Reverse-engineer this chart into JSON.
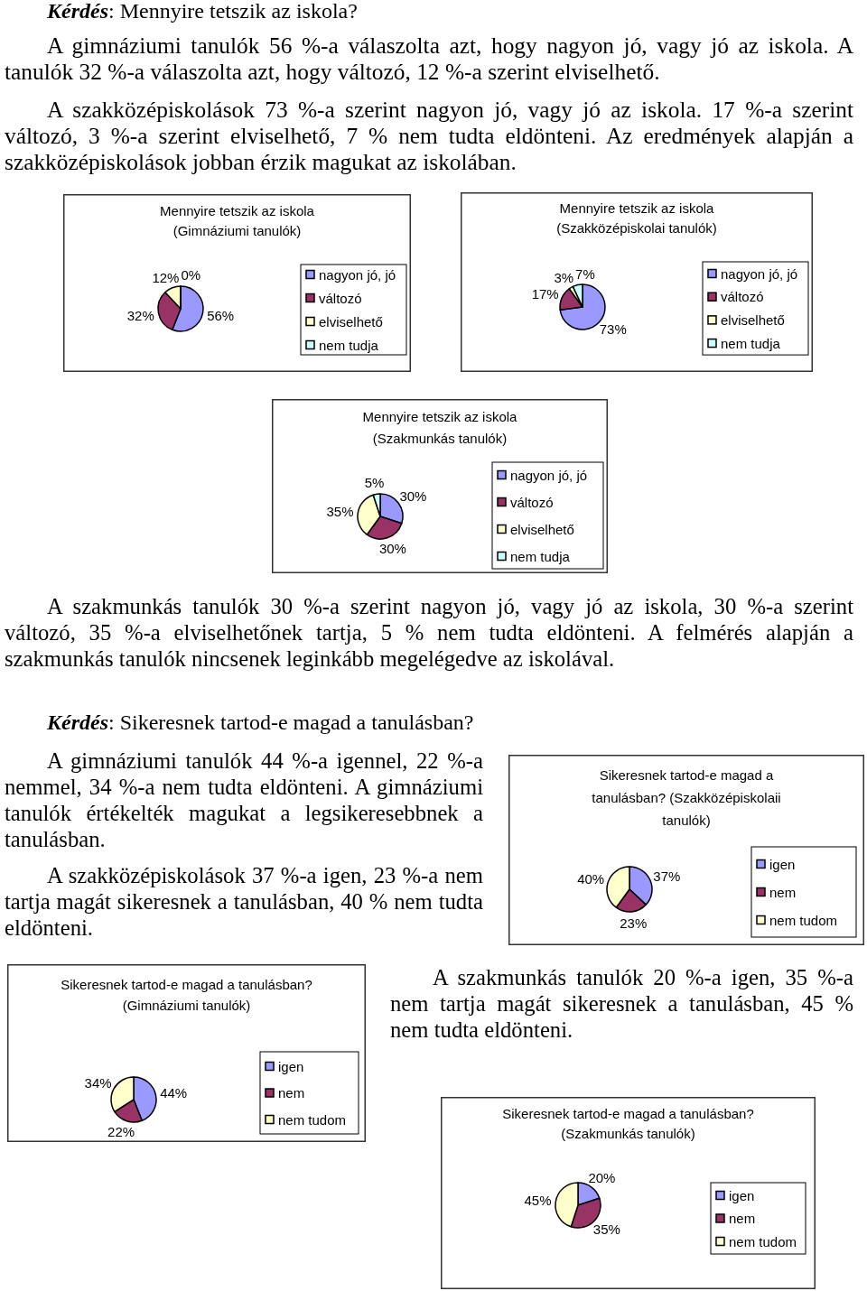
{
  "chart_data": [
    {
      "type": "other",
      "title": "Kérdés: Mennyire tetszik az iskola?",
      "annotations": [
        "A gimnáziumi tanulók 56 %-a válaszolta azt, hogy nagyon jó, vagy jó az iskola. A tanulók 32 %-a válaszolta azt, hogy változó, 12 %-a szerint elviselhető.",
        "A szakközépiskolások 73 %-a szerint nagyon jó, vagy jó az iskola. 17 %-a szerint változó, 3 %-a szerint elviselhető, 7 % nem tudta eldönteni. Az eredmények alapján a szakközépiskolások jobban érzik magukat az iskolában."
      ]
    },
    {
      "type": "pie",
      "title": "Mennyire tetszik az iskola",
      "subtitle": "(Gimnáziumi tanulók)",
      "categories": [
        "nagyon jó, jó",
        "változó",
        "elviselhető",
        "nem tudja"
      ],
      "values": [
        56,
        32,
        12,
        0
      ],
      "colors": [
        "#9999ff",
        "#993366",
        "#ffffcc",
        "#ccffff"
      ],
      "value_labels": [
        "56%",
        "32%",
        "12%",
        "0%"
      ],
      "legend": "right"
    },
    {
      "type": "pie",
      "title": "Mennyire tetszik az iskola",
      "subtitle": "(Szakközépiskolai tanulók)",
      "categories": [
        "nagyon jó, jó",
        "változó",
        "elviselhető",
        "nem tudja"
      ],
      "values": [
        73,
        17,
        3,
        7
      ],
      "colors": [
        "#9999ff",
        "#993366",
        "#ffffcc",
        "#ccffff"
      ],
      "value_labels": [
        "73%",
        "17%",
        "3%",
        "7%"
      ],
      "legend": "right"
    },
    {
      "type": "pie",
      "title": "Mennyire tetszik az iskola",
      "subtitle": "(Szakmunkás tanulók)",
      "categories": [
        "nagyon jó, jó",
        "változó",
        "elviselhető",
        "nem tudja"
      ],
      "values": [
        30,
        30,
        35,
        5
      ],
      "colors": [
        "#9999ff",
        "#993366",
        "#ffffcc",
        "#ccffff"
      ],
      "value_labels": [
        "30%",
        "30%",
        "35%",
        "5%"
      ],
      "legend": "right"
    },
    {
      "type": "other",
      "annotations": [
        "A szakmunkás tanulók 30 %-a szerint nagyon jó, vagy jó az iskola, 30 %-a szerint változó, 35 %-a elviselhetőnek tartja, 5 % nem tudta eldönteni. A felmérés alapján a szakmunkás tanulók nincsenek leginkább megelégedve az iskolával."
      ]
    },
    {
      "type": "other",
      "title": "Kérdés: Sikeresnek tartod-e magad a tanulásban?",
      "annotations": [
        "A gimnáziumi tanulók 44 %-a igennel, 22 %-a nemmel, 34 %-a nem tudta eldönteni. A gimnáziumi tanulók értékelték magukat a legsikeresebbnek a tanulásban.",
        "A szakközépiskolások 37 %-a igen, 23 %-a nem tartja magát sikeresnek a tanulásban, 40 % nem tudta eldönteni."
      ]
    },
    {
      "type": "pie",
      "title": "Sikeresnek tartod-e magad a tanulásban? (Szakközépiskolaii tanulók)",
      "categories": [
        "igen",
        "nem",
        "nem tudom"
      ],
      "values": [
        37,
        23,
        40
      ],
      "colors": [
        "#9999ff",
        "#993366",
        "#ffffcc"
      ],
      "value_labels": [
        "37%",
        "23%",
        "40%"
      ],
      "legend": "right"
    },
    {
      "type": "pie",
      "title": "Sikeresnek tartod-e magad a tanulásban?",
      "subtitle": "(Gimnáziumi tanulók)",
      "categories": [
        "igen",
        "nem",
        "nem tudom"
      ],
      "values": [
        44,
        22,
        34
      ],
      "colors": [
        "#9999ff",
        "#993366",
        "#ffffcc"
      ],
      "value_labels": [
        "44%",
        "22%",
        "34%"
      ],
      "legend": "right"
    },
    {
      "type": "other",
      "annotations": [
        "A szakmunkás tanulók 20 %-a igen, 35 %-a nem tartja magát sikeresnek a tanulásban, 45 % nem tudta eldönteni."
      ]
    },
    {
      "type": "pie",
      "title": "Sikeresnek tartod-e magad a tanulásban?",
      "subtitle": "(Szakmunkás tanulók)",
      "categories": [
        "igen",
        "nem",
        "nem tudom"
      ],
      "values": [
        20,
        35,
        45
      ],
      "colors": [
        "#9999ff",
        "#993366",
        "#ffffcc"
      ],
      "value_labels": [
        "20%",
        "35%",
        "45%"
      ],
      "legend": "right"
    }
  ]
}
